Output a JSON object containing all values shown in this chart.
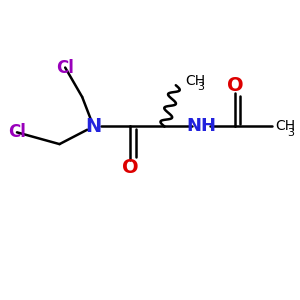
{
  "bg_color": "#ffffff",
  "col_C": "#000000",
  "col_N": "#2222dd",
  "col_O": "#dd0000",
  "col_Cl": "#9900bb",
  "lw": 1.8,
  "figsize": [
    3.0,
    3.0
  ],
  "dpi": 100,
  "xlim": [
    0,
    10
  ],
  "ylim": [
    0,
    10
  ]
}
